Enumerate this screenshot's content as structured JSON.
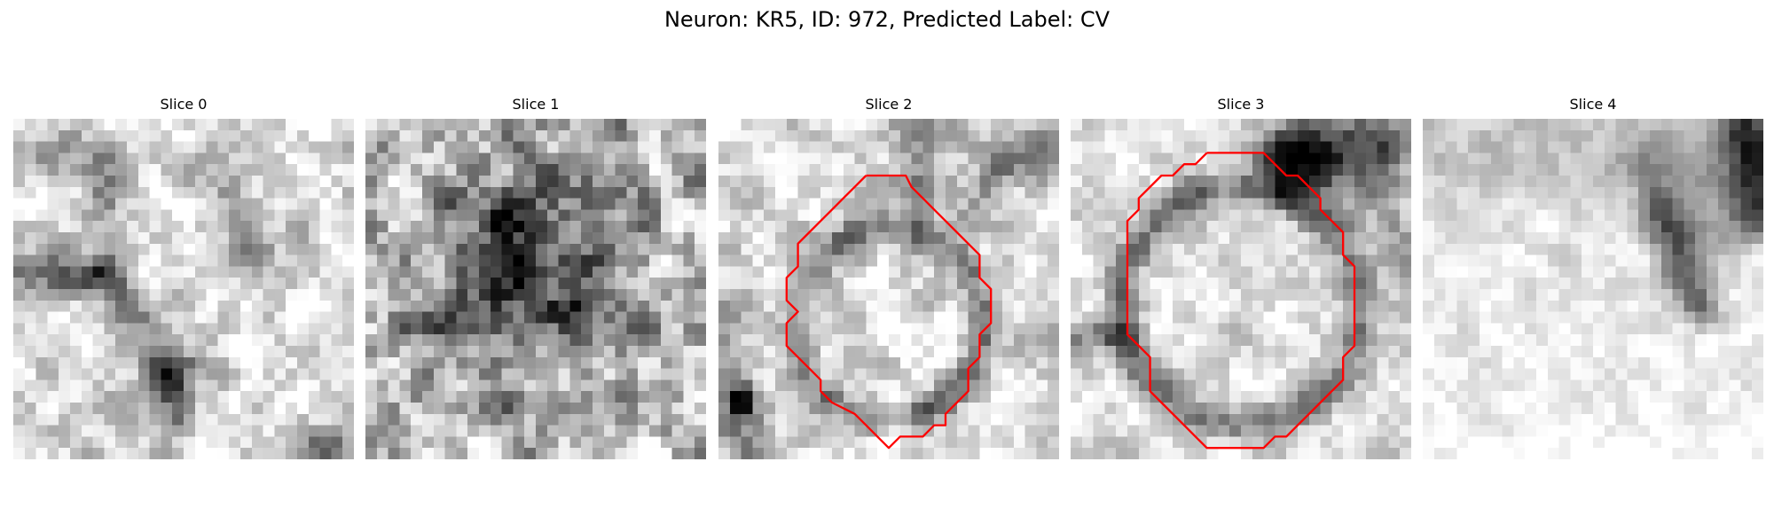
{
  "figure": {
    "title": "Neuron: KR5, ID: 972, Predicted Label: CV"
  },
  "slices": [
    {
      "label": "Slice 0",
      "has_contour": false,
      "contour_color": "#ff0000"
    },
    {
      "label": "Slice 1",
      "has_contour": false,
      "contour_color": "#ff0000"
    },
    {
      "label": "Slice 2",
      "has_contour": true,
      "contour_color": "#ff0000"
    },
    {
      "label": "Slice 3",
      "has_contour": true,
      "contour_color": "#ff0000"
    },
    {
      "label": "Slice 4",
      "has_contour": false,
      "contour_color": "#ff0000"
    }
  ],
  "colormap": "gray"
}
